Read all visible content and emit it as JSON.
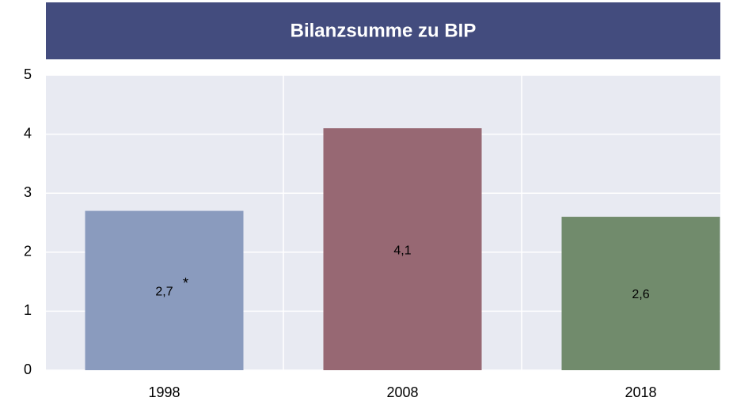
{
  "chart_data": {
    "type": "bar",
    "title": "Bilanzsumme zu BIP",
    "categories": [
      "1998",
      "2008",
      "2018"
    ],
    "values": [
      2.7,
      4.1,
      2.6
    ],
    "value_labels": [
      "2,7",
      "4,1",
      "2,6"
    ],
    "annotation": "*",
    "colors": [
      "#8a9bbe",
      "#976873",
      "#718b6c"
    ],
    "ylim": [
      0,
      5
    ],
    "yticks": [
      0,
      1,
      2,
      3,
      4,
      5
    ],
    "grid": true
  }
}
